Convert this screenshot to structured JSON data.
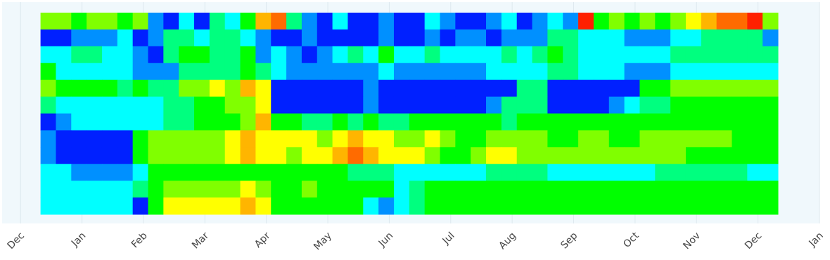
{
  "chart_data": {
    "type": "heatmap",
    "x": [
      0.45,
      0.7,
      0.95,
      1.2,
      1.45,
      1.7,
      1.95,
      2.2,
      2.45,
      2.7,
      2.95,
      3.2,
      3.45,
      3.7,
      3.95,
      4.2,
      4.45,
      4.7,
      4.95,
      5.2,
      5.45,
      5.7,
      5.95,
      6.2,
      6.45,
      6.7,
      6.95,
      7.2,
      7.45,
      7.7,
      7.95,
      8.2,
      8.45,
      8.7,
      8.95,
      9.2,
      9.45,
      9.7,
      9.95,
      10.2,
      10.45,
      10.7,
      10.95,
      11.2,
      11.45,
      11.7,
      11.95,
      12.2
    ],
    "y": [
      null,
      null,
      null,
      null,
      null,
      null,
      null,
      null,
      null,
      null,
      null,
      null
    ],
    "z": [
      [
        6,
        6,
        5,
        6,
        6,
        5,
        6,
        2,
        1,
        3,
        1,
        4,
        3,
        5,
        8,
        9,
        4,
        2,
        1,
        3,
        1,
        1,
        2,
        1,
        1,
        3,
        2,
        1,
        1,
        2,
        3,
        1,
        2,
        3,
        2,
        10,
        5,
        6,
        5,
        6,
        5,
        6,
        7,
        8,
        9,
        9,
        10,
        6
      ],
      [
        1,
        1,
        2,
        2,
        2,
        3,
        1,
        2,
        4,
        4,
        3,
        4,
        4,
        3,
        2,
        1,
        1,
        2,
        1,
        1,
        1,
        1,
        2,
        1,
        1,
        2,
        1,
        2,
        2,
        1,
        2,
        2,
        2,
        4,
        4,
        3,
        3,
        3,
        2,
        2,
        2,
        3,
        3,
        4,
        4,
        4,
        4,
        2
      ],
      [
        3,
        3,
        4,
        4,
        3,
        3,
        2,
        1,
        4,
        5,
        5,
        4,
        4,
        5,
        2,
        3,
        2,
        1,
        2,
        3,
        4,
        3,
        5,
        3,
        3,
        4,
        3,
        3,
        3,
        3,
        4,
        3,
        4,
        5,
        4,
        3,
        3,
        3,
        3,
        3,
        3,
        4,
        4,
        4,
        4,
        4,
        4,
        4
      ],
      [
        5,
        3,
        3,
        3,
        3,
        3,
        2,
        2,
        2,
        4,
        4,
        4,
        4,
        5,
        4,
        3,
        2,
        2,
        2,
        2,
        2,
        2,
        3,
        2,
        2,
        2,
        2,
        2,
        2,
        3,
        3,
        3,
        3,
        4,
        4,
        3,
        3,
        3,
        2,
        2,
        2,
        3,
        3,
        3,
        3,
        3,
        3,
        3
      ],
      [
        6,
        5,
        5,
        5,
        5,
        4,
        5,
        4,
        4,
        6,
        6,
        7,
        6,
        8,
        7,
        1,
        1,
        1,
        1,
        1,
        1,
        2,
        1,
        1,
        1,
        1,
        1,
        1,
        1,
        1,
        1,
        4,
        4,
        1,
        1,
        1,
        1,
        1,
        1,
        5,
        5,
        6,
        6,
        6,
        6,
        6,
        6,
        6
      ],
      [
        4,
        3,
        3,
        3,
        3,
        3,
        3,
        3,
        4,
        4,
        5,
        5,
        6,
        6,
        7,
        1,
        1,
        1,
        1,
        1,
        1,
        2,
        1,
        1,
        1,
        1,
        1,
        1,
        1,
        2,
        4,
        4,
        4,
        1,
        1,
        1,
        1,
        2,
        3,
        4,
        4,
        5,
        5,
        5,
        5,
        5,
        5,
        5
      ],
      [
        1,
        2,
        3,
        3,
        3,
        3,
        3,
        3,
        4,
        4,
        5,
        5,
        5,
        6,
        8,
        5,
        5,
        4,
        4,
        5,
        4,
        5,
        4,
        4,
        5,
        5,
        5,
        5,
        5,
        5,
        4,
        5,
        5,
        5,
        5,
        5,
        5,
        5,
        5,
        5,
        5,
        5,
        5,
        5,
        5,
        5,
        5,
        5
      ],
      [
        2,
        1,
        1,
        1,
        1,
        1,
        5,
        6,
        6,
        6,
        6,
        6,
        7,
        8,
        7,
        7,
        7,
        7,
        6,
        7,
        8,
        7,
        7,
        6,
        6,
        7,
        6,
        5,
        5,
        6,
        6,
        6,
        6,
        5,
        5,
        6,
        6,
        5,
        5,
        6,
        6,
        6,
        6,
        6,
        6,
        5,
        5,
        5
      ],
      [
        2,
        1,
        1,
        1,
        1,
        1,
        5,
        6,
        6,
        6,
        6,
        6,
        7,
        8,
        7,
        7,
        6,
        7,
        7,
        8,
        9,
        8,
        7,
        7,
        7,
        6,
        5,
        5,
        6,
        7,
        7,
        6,
        6,
        6,
        6,
        6,
        6,
        6,
        6,
        6,
        6,
        6,
        5,
        5,
        5,
        5,
        5,
        5
      ],
      [
        3,
        3,
        2,
        2,
        2,
        2,
        3,
        5,
        5,
        5,
        5,
        5,
        5,
        5,
        5,
        5,
        5,
        5,
        5,
        5,
        4,
        4,
        4,
        3,
        3,
        3,
        3,
        3,
        3,
        4,
        4,
        4,
        4,
        3,
        3,
        3,
        3,
        3,
        3,
        3,
        4,
        4,
        4,
        4,
        4,
        4,
        3,
        3
      ],
      [
        3,
        3,
        3,
        3,
        3,
        3,
        4,
        5,
        6,
        6,
        6,
        6,
        6,
        7,
        6,
        5,
        5,
        6,
        5,
        5,
        5,
        5,
        5,
        3,
        4,
        5,
        5,
        5,
        5,
        5,
        5,
        5,
        5,
        5,
        5,
        5,
        5,
        5,
        5,
        5,
        5,
        5,
        5,
        5,
        5,
        5,
        5,
        5
      ],
      [
        3,
        3,
        3,
        3,
        3,
        3,
        1,
        5,
        7,
        7,
        7,
        7,
        7,
        8,
        7,
        5,
        5,
        5,
        5,
        5,
        5,
        3,
        2,
        3,
        4,
        5,
        5,
        5,
        5,
        5,
        5,
        5,
        5,
        5,
        5,
        5,
        5,
        5,
        5,
        5,
        5,
        5,
        5,
        5,
        5,
        5,
        5,
        5
      ]
    ],
    "zlim": [
      0,
      10
    ],
    "colorscale": [
      [
        0,
        "#0000e0"
      ],
      [
        0.1,
        "#0020ff"
      ],
      [
        0.3,
        "#00ffff"
      ],
      [
        0.5,
        "#00ff00"
      ],
      [
        0.7,
        "#ffff00"
      ],
      [
        0.85,
        "#ff9000"
      ],
      [
        1,
        "#ff2000"
      ]
    ],
    "xlim": [
      -0.3,
      13
    ],
    "xticks": [
      {
        "value": 0,
        "label": "Dec"
      },
      {
        "value": 1,
        "label": "Jan"
      },
      {
        "value": 2,
        "label": "Feb"
      },
      {
        "value": 3,
        "label": "Mar"
      },
      {
        "value": 4,
        "label": "Apr"
      },
      {
        "value": 5,
        "label": "May"
      },
      {
        "value": 6,
        "label": "Jun"
      },
      {
        "value": 7,
        "label": "Jul"
      },
      {
        "value": 8,
        "label": "Aug"
      },
      {
        "value": 9,
        "label": "Sep"
      },
      {
        "value": 10,
        "label": "Oct"
      },
      {
        "value": 11,
        "label": "Nov"
      },
      {
        "value": 12,
        "label": "Dec"
      },
      {
        "value": 13,
        "label": "Jan"
      }
    ],
    "grid": true
  }
}
